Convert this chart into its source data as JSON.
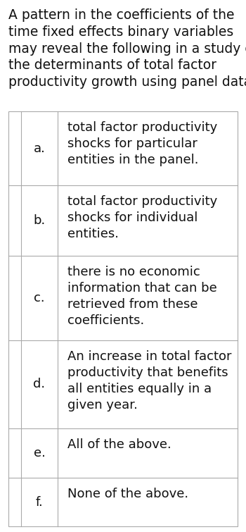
{
  "title": "A pattern in the coefficients of the time fixed effects binary variables may reveal the following in a study of the determinants of total factor productivity growth using panel data:",
  "title_lines": [
    "A pattern in the coefficients of the",
    "time fixed effects binary variables",
    "may reveal the following in a study of",
    "the determinants of total factor",
    "productivity growth using panel data:"
  ],
  "options": [
    {
      "label": "a.",
      "text": "total factor productivity\nshocks for particular\nentities in the panel."
    },
    {
      "label": "b.",
      "text": "total factor productivity\nshocks for individual\nentities."
    },
    {
      "label": "c.",
      "text": "there is no economic\ninformation that can be\nretrieved from these\ncoefficients."
    },
    {
      "label": "d.",
      "text": "An increase in total factor\nproductivity that benefits\nall entities equally in a\ngiven year."
    },
    {
      "label": "e.",
      "text": "All of the above."
    },
    {
      "label": "f.",
      "text": "None of the above."
    }
  ],
  "bg_color": "#ffffff",
  "text_color": "#111111",
  "border_color": "#aaaaaa",
  "title_fontsize": 13.5,
  "option_fontsize": 13.0,
  "label_fontsize": 13.0,
  "font_family": "DejaVu Sans"
}
